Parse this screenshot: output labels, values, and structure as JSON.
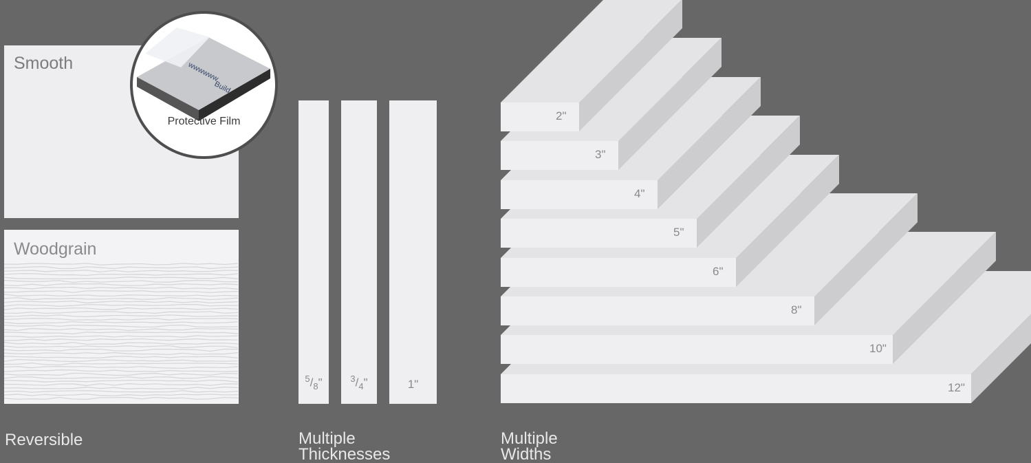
{
  "reversible": {
    "smooth_label": "Smooth",
    "woodgrain_label": "Woodgrain",
    "film_label": "Protective Film",
    "caption": "Reversible"
  },
  "thicknesses": {
    "items": [
      {
        "num": "5",
        "den": "8",
        "unit": "\""
      },
      {
        "num": "3",
        "den": "4",
        "unit": "\""
      },
      {
        "label": "1\""
      }
    ],
    "caption_line1": "Multiple",
    "caption_line2": "Thicknesses"
  },
  "widths": {
    "items": [
      "2\"",
      "3\"",
      "4\"",
      "5\"",
      "6\"",
      "8\"",
      "10\"",
      "12\""
    ],
    "caption_line1": "Multiple",
    "caption_line2": "Widths"
  },
  "colors": {
    "background": "#666766",
    "board_face": "#efeef1",
    "board_top": "#e4e4e6",
    "board_side": "#cdcdcf"
  }
}
